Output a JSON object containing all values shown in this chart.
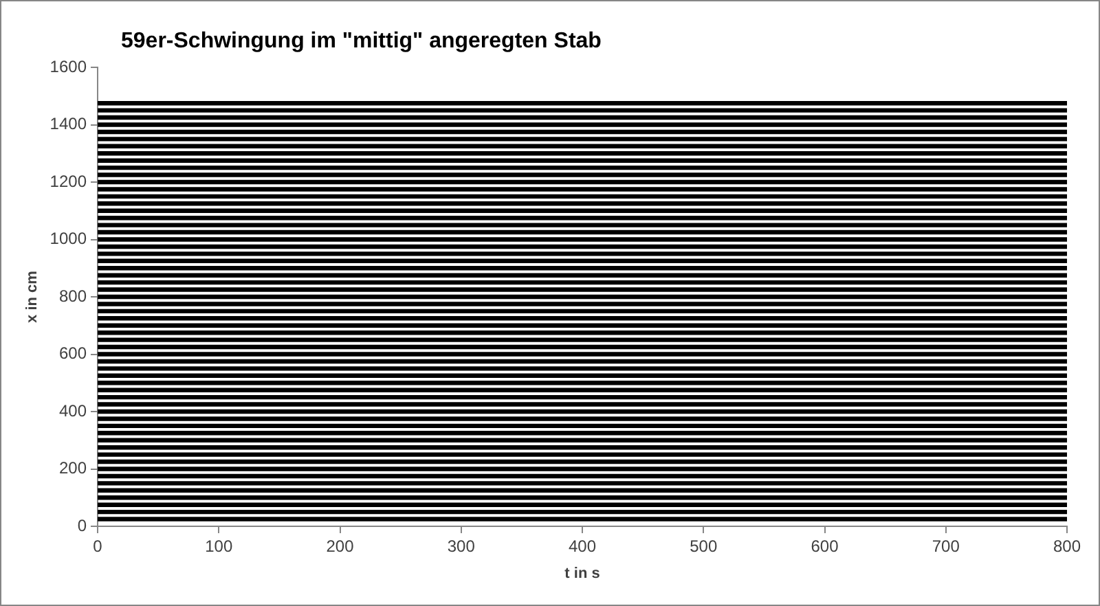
{
  "chart_data": {
    "type": "line",
    "title": "59er-Schwingung im \"mittig\" angeregten Stab",
    "xlabel": "t in s",
    "ylabel": "x in cm",
    "x": [
      0,
      800
    ],
    "xlim": [
      0,
      800
    ],
    "xticks": [
      0,
      100,
      200,
      300,
      400,
      500,
      600,
      700,
      800
    ],
    "ylim": [
      0,
      1600
    ],
    "yticks": [
      0,
      200,
      400,
      600,
      800,
      1000,
      1200,
      1400,
      1600
    ],
    "grid": false,
    "legend": false,
    "marker": "none",
    "line_style": "solid",
    "series": [
      {
        "color": "#000000",
        "values": [
          25,
          25
        ]
      },
      {
        "color": "#000000",
        "values": [
          50,
          50
        ]
      },
      {
        "color": "#000000",
        "values": [
          75,
          75
        ]
      },
      {
        "color": "#000000",
        "values": [
          100,
          100
        ]
      },
      {
        "color": "#000000",
        "values": [
          125,
          125
        ]
      },
      {
        "color": "#000000",
        "values": [
          150,
          150
        ]
      },
      {
        "color": "#000000",
        "values": [
          175,
          175
        ]
      },
      {
        "color": "#000000",
        "values": [
          200,
          200
        ]
      },
      {
        "color": "#000000",
        "values": [
          225,
          225
        ]
      },
      {
        "color": "#000000",
        "values": [
          250,
          250
        ]
      },
      {
        "color": "#000000",
        "values": [
          275,
          275
        ]
      },
      {
        "color": "#000000",
        "values": [
          300,
          300
        ]
      },
      {
        "color": "#000000",
        "values": [
          325,
          325
        ]
      },
      {
        "color": "#000000",
        "values": [
          350,
          350
        ]
      },
      {
        "color": "#000000",
        "values": [
          375,
          375
        ]
      },
      {
        "color": "#000000",
        "values": [
          400,
          400
        ]
      },
      {
        "color": "#000000",
        "values": [
          425,
          425
        ]
      },
      {
        "color": "#000000",
        "values": [
          450,
          450
        ]
      },
      {
        "color": "#000000",
        "values": [
          475,
          475
        ]
      },
      {
        "color": "#000000",
        "values": [
          500,
          500
        ]
      },
      {
        "color": "#000000",
        "values": [
          525,
          525
        ]
      },
      {
        "color": "#000000",
        "values": [
          550,
          550
        ]
      },
      {
        "color": "#000000",
        "values": [
          575,
          575
        ]
      },
      {
        "color": "#000000",
        "values": [
          600,
          600
        ]
      },
      {
        "color": "#000000",
        "values": [
          625,
          625
        ]
      },
      {
        "color": "#000000",
        "values": [
          650,
          650
        ]
      },
      {
        "color": "#000000",
        "values": [
          675,
          675
        ]
      },
      {
        "color": "#000000",
        "values": [
          700,
          700
        ]
      },
      {
        "color": "#000000",
        "values": [
          725,
          725
        ]
      },
      {
        "color": "#000000",
        "values": [
          750,
          750
        ]
      },
      {
        "color": "#000000",
        "values": [
          775,
          775
        ]
      },
      {
        "color": "#000000",
        "values": [
          800,
          800
        ]
      },
      {
        "color": "#000000",
        "values": [
          825,
          825
        ]
      },
      {
        "color": "#000000",
        "values": [
          850,
          850
        ]
      },
      {
        "color": "#000000",
        "values": [
          875,
          875
        ]
      },
      {
        "color": "#000000",
        "values": [
          900,
          900
        ]
      },
      {
        "color": "#000000",
        "values": [
          925,
          925
        ]
      },
      {
        "color": "#000000",
        "values": [
          950,
          950
        ]
      },
      {
        "color": "#000000",
        "values": [
          975,
          975
        ]
      },
      {
        "color": "#000000",
        "values": [
          1000,
          1000
        ]
      },
      {
        "color": "#000000",
        "values": [
          1025,
          1025
        ]
      },
      {
        "color": "#000000",
        "values": [
          1050,
          1050
        ]
      },
      {
        "color": "#000000",
        "values": [
          1075,
          1075
        ]
      },
      {
        "color": "#000000",
        "values": [
          1100,
          1100
        ]
      },
      {
        "color": "#000000",
        "values": [
          1125,
          1125
        ]
      },
      {
        "color": "#000000",
        "values": [
          1150,
          1150
        ]
      },
      {
        "color": "#000000",
        "values": [
          1175,
          1175
        ]
      },
      {
        "color": "#000000",
        "values": [
          1200,
          1200
        ]
      },
      {
        "color": "#000000",
        "values": [
          1225,
          1225
        ]
      },
      {
        "color": "#000000",
        "values": [
          1250,
          1250
        ]
      },
      {
        "color": "#000000",
        "values": [
          1275,
          1275
        ]
      },
      {
        "color": "#000000",
        "values": [
          1300,
          1300
        ]
      },
      {
        "color": "#000000",
        "values": [
          1325,
          1325
        ]
      },
      {
        "color": "#000000",
        "values": [
          1350,
          1350
        ]
      },
      {
        "color": "#000000",
        "values": [
          1375,
          1375
        ]
      },
      {
        "color": "#000000",
        "values": [
          1400,
          1400
        ]
      },
      {
        "color": "#000000",
        "values": [
          1425,
          1425
        ]
      },
      {
        "color": "#000000",
        "values": [
          1450,
          1450
        ]
      },
      {
        "color": "#000000",
        "values": [
          1475,
          1475
        ]
      }
    ]
  }
}
